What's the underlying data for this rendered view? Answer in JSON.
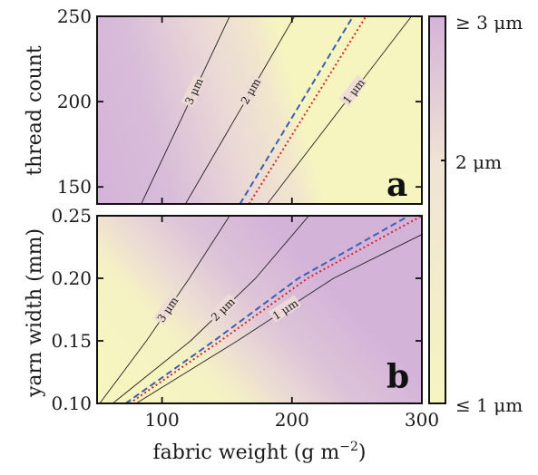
{
  "chart_data": [
    {
      "panel": "a",
      "type": "heatmap",
      "xlim": [
        50,
        300
      ],
      "ylim": [
        140,
        250
      ],
      "yticks": [
        150,
        200,
        250
      ],
      "ylabel": "thread count",
      "contours": [
        {
          "label": "3 μm",
          "points": [
            [
              84,
              140
            ],
            [
              152,
              250
            ]
          ]
        },
        {
          "label": "2 μm",
          "points": [
            [
              118,
              140
            ],
            [
              202,
              250
            ]
          ]
        },
        {
          "label": "1 μm",
          "points": [
            [
              181,
              140
            ],
            [
              292,
              250
            ]
          ]
        }
      ],
      "dashed_line": {
        "color": "#3a5fb0",
        "points": [
          [
            160,
            140
          ],
          [
            247,
            250
          ]
        ]
      },
      "dotted_line": {
        "color": "#dd2222",
        "points": [
          [
            167,
            140
          ],
          [
            257,
            250
          ]
        ]
      }
    },
    {
      "panel": "b",
      "type": "heatmap",
      "xlim": [
        50,
        300
      ],
      "ylim": [
        0.1,
        0.25
      ],
      "xticks": [
        100,
        200,
        300
      ],
      "yticks": [
        0.1,
        0.15,
        0.2,
        0.25
      ],
      "xlabel": "fabric weight (g m⁻²)",
      "ylabel": "yarn width (mm)",
      "contours": [
        {
          "label": "3 μm",
          "points": [
            [
              52,
              0.1
            ],
            [
              88,
              0.15
            ],
            [
              121,
              0.2
            ],
            [
              152,
              0.25
            ]
          ]
        },
        {
          "label": "2 μm",
          "points": [
            [
              62,
              0.1
            ],
            [
              122,
              0.15
            ],
            [
              172,
              0.2
            ],
            [
              213,
              0.25
            ]
          ]
        },
        {
          "label": "1 μm",
          "points": [
            [
              80,
              0.1
            ],
            [
              158,
              0.15
            ],
            [
              232,
              0.2
            ],
            [
              300,
              0.235
            ]
          ]
        }
      ],
      "dashed_line": {
        "color": "#3a5fb0",
        "points": [
          [
            72,
            0.1
          ],
          [
            140,
            0.15
          ],
          [
            205,
            0.2
          ],
          [
            290,
            0.25
          ]
        ]
      },
      "dotted_line": {
        "color": "#dd2222",
        "points": [
          [
            75,
            0.1
          ],
          [
            145,
            0.15
          ],
          [
            212,
            0.2
          ],
          [
            300,
            0.25
          ]
        ]
      }
    }
  ],
  "colorbar": {
    "labels": [
      "≥ 3 μm",
      "2 μm",
      "≤ 1 μm"
    ],
    "colors": {
      "high": "#d5b3d9",
      "mid": "#f0e3d4",
      "low": "#f6f5c0"
    }
  },
  "panel_letters": [
    "a",
    "b"
  ],
  "x_tick_labels": [
    "100",
    "200",
    "300"
  ],
  "a_y_tick_labels": [
    "150",
    "200",
    "250"
  ],
  "b_y_tick_labels": [
    "0.10",
    "0.15",
    "0.20",
    "0.25"
  ],
  "labels": {
    "ylabel_a": "thread count",
    "ylabel_b": "yarn width (mm)",
    "xlabel_text": "fabric weight (g m",
    "xlabel_sup": "−2",
    "xlabel_close": ")"
  }
}
